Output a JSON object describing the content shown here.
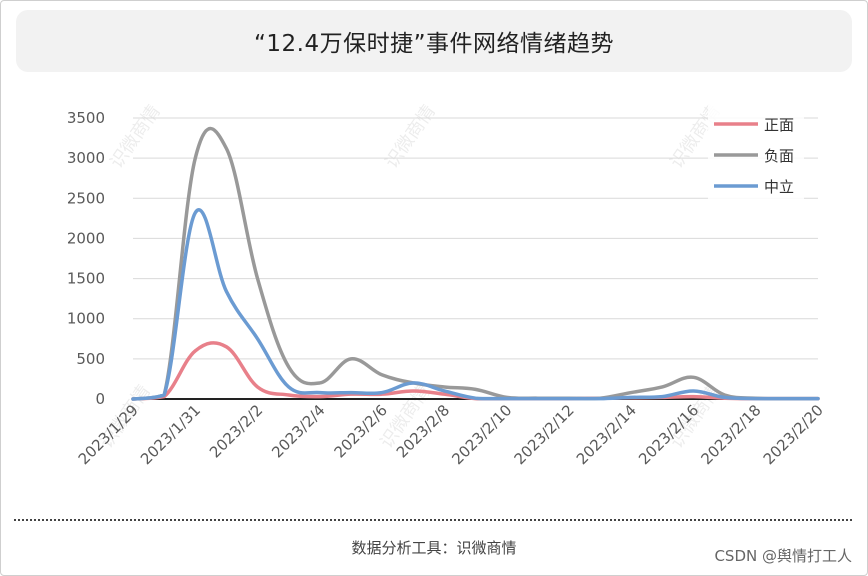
{
  "title": "“12.4万保时捷”事件网络情绪趋势",
  "footer": "数据分析工具：识微商情",
  "credit": "CSDN @舆情打工人",
  "watermark_text": "识微商情",
  "chart_data": {
    "type": "line",
    "title": "“12.4万保时捷”事件网络情绪趋势",
    "xlabel": "",
    "ylabel": "",
    "ylim": [
      0,
      3500
    ],
    "yticks": [
      0,
      500,
      1000,
      1500,
      2000,
      2500,
      3000,
      3500
    ],
    "grid": true,
    "legend_position": "top-right",
    "x": [
      "2023/1/29",
      "2023/1/30",
      "2023/1/31",
      "2023/2/1",
      "2023/2/2",
      "2023/2/3",
      "2023/2/4",
      "2023/2/5",
      "2023/2/6",
      "2023/2/7",
      "2023/2/8",
      "2023/2/9",
      "2023/2/10",
      "2023/2/11",
      "2023/2/12",
      "2023/2/13",
      "2023/2/14",
      "2023/2/15",
      "2023/2/16",
      "2023/2/17",
      "2023/2/18",
      "2023/2/19",
      "2023/2/20"
    ],
    "xtick_labels": [
      "2023/1/29",
      "2023/1/31",
      "2023/2/2",
      "2023/2/4",
      "2023/2/6",
      "2023/2/8",
      "2023/2/10",
      "2023/2/12",
      "2023/2/14",
      "2023/2/16",
      "2023/2/18",
      "2023/2/20"
    ],
    "series": [
      {
        "name": "正面",
        "color": "#e8808a",
        "values": [
          0,
          30,
          600,
          650,
          150,
          50,
          30,
          60,
          60,
          100,
          60,
          5,
          5,
          5,
          5,
          10,
          15,
          20,
          30,
          10,
          5,
          5,
          5
        ]
      },
      {
        "name": "负面",
        "color": "#999999",
        "values": [
          0,
          50,
          3000,
          3120,
          1500,
          400,
          200,
          500,
          300,
          200,
          150,
          120,
          20,
          10,
          10,
          10,
          80,
          150,
          270,
          50,
          10,
          5,
          5
        ]
      },
      {
        "name": "中立",
        "color": "#6b9bd2",
        "values": [
          0,
          50,
          2320,
          1340,
          750,
          150,
          80,
          80,
          80,
          200,
          100,
          10,
          5,
          5,
          5,
          5,
          20,
          30,
          100,
          20,
          5,
          5,
          5
        ]
      }
    ]
  }
}
